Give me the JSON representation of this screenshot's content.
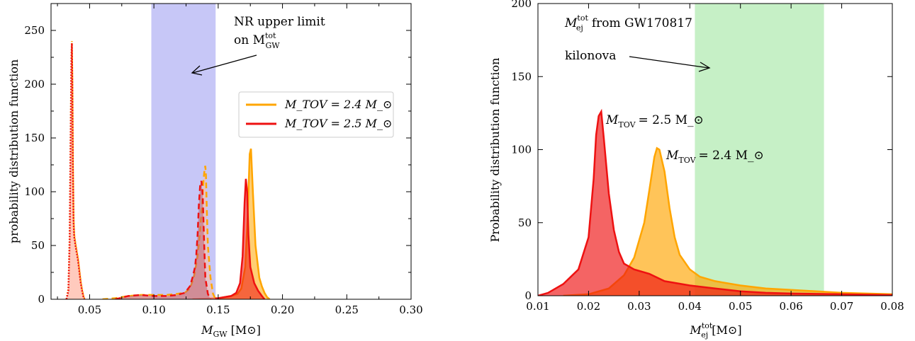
{
  "chart_data": [
    {
      "type": "area",
      "xlabel": "M_GW [M_⊙]",
      "ylabel": "probability distribution function",
      "xlim": [
        0.02,
        0.3
      ],
      "ylim": [
        0,
        275
      ],
      "x_ticks": [
        "0.05",
        "0.10",
        "0.15",
        "0.20",
        "0.25",
        "0.30"
      ],
      "y_ticks": [
        "0",
        "50",
        "100",
        "150",
        "200",
        "250"
      ],
      "shaded_band": {
        "x": [
          0.098,
          0.148
        ],
        "color": "#c7c7f7"
      },
      "annotation": {
        "line1": "NR upper limit",
        "line2_prefix": "on M",
        "line2_sub": "GW",
        "line2_sup": "tot"
      },
      "legend": {
        "placement": "right",
        "entries": [
          {
            "label": "M_TOV = 2.4 M_⊙",
            "color": "#ffa500"
          },
          {
            "label": "M_TOV = 2.5 M_⊙",
            "color": "#ee1111"
          }
        ]
      },
      "series": [
        {
          "name": "M_TOV = 2.4 M_⊙",
          "style": "solid",
          "color": "#ffa500",
          "fill": "#ffa500",
          "x": [
            0.13,
            0.15,
            0.16,
            0.165,
            0.168,
            0.171,
            0.173,
            0.1745,
            0.1755,
            0.177,
            0.179,
            0.182,
            0.184,
            0.186,
            0.188,
            0.19
          ],
          "y": [
            0,
            1,
            3,
            5,
            10,
            30,
            80,
            135,
            140,
            100,
            50,
            20,
            12,
            6,
            2,
            0
          ]
        },
        {
          "name": "M_TOV = 2.5 M_⊙",
          "style": "solid",
          "color": "#ee1111",
          "fill": "#ee1111",
          "x": [
            0.13,
            0.15,
            0.16,
            0.164,
            0.167,
            0.169,
            0.1705,
            0.1715,
            0.1725,
            0.1735,
            0.175,
            0.178,
            0.181,
            0.184,
            0.186
          ],
          "y": [
            0,
            1,
            3,
            6,
            15,
            40,
            90,
            112,
            100,
            60,
            30,
            15,
            8,
            3,
            0
          ]
        },
        {
          "name": "M_TOV = 2.4 M_⊙",
          "style": "dashed",
          "color": "#ffa500",
          "fill": "#ffc0a0",
          "x": [
            0.06,
            0.07,
            0.08,
            0.09,
            0.1,
            0.11,
            0.118,
            0.124,
            0.128,
            0.131,
            0.134,
            0.136,
            0.1375,
            0.1385,
            0.1395,
            0.14,
            0.1405,
            0.141,
            0.142,
            0.144,
            0.146,
            0.148
          ],
          "y": [
            0,
            1,
            3,
            4,
            4,
            4,
            5,
            6,
            10,
            20,
            40,
            65,
            90,
            110,
            122,
            124,
            115,
            90,
            50,
            20,
            5,
            0
          ]
        },
        {
          "name": "M_TOV = 2.5 M_⊙",
          "style": "dashed",
          "color": "#ee1111",
          "fill": "#c06070",
          "x": [
            0.07,
            0.08,
            0.09,
            0.1,
            0.11,
            0.118,
            0.124,
            0.128,
            0.13,
            0.132,
            0.133,
            0.134,
            0.135,
            0.136,
            0.137,
            0.138,
            0.139,
            0.14,
            0.142,
            0.144
          ],
          "y": [
            0,
            3,
            4,
            3,
            3,
            4,
            6,
            12,
            20,
            30,
            42,
            60,
            88,
            107,
            110,
            95,
            55,
            20,
            5,
            0
          ]
        },
        {
          "name": "M_TOV = 2.4 M_⊙",
          "style": "dotted",
          "color": "#ffa500",
          "fill": "#ffc8b8",
          "x": [
            0.032,
            0.0335,
            0.0345,
            0.0352,
            0.0358,
            0.0362,
            0.0366,
            0.037,
            0.0375,
            0.038,
            0.039,
            0.04,
            0.041,
            0.042,
            0.043,
            0.044,
            0.045,
            0.046
          ],
          "y": [
            0,
            10,
            60,
            150,
            225,
            240,
            205,
            130,
            75,
            60,
            52,
            45,
            38,
            28,
            18,
            10,
            4,
            0
          ]
        },
        {
          "name": "M_TOV = 2.5 M_⊙",
          "style": "dotted",
          "color": "#ee1111",
          "fill": "#ffb8a8",
          "x": [
            0.032,
            0.0335,
            0.0345,
            0.0352,
            0.0358,
            0.0362,
            0.0366,
            0.037,
            0.0375,
            0.038,
            0.039,
            0.04,
            0.041,
            0.042,
            0.043,
            0.044,
            0.045,
            0.046
          ],
          "y": [
            0,
            8,
            55,
            145,
            220,
            238,
            200,
            125,
            72,
            58,
            50,
            43,
            36,
            26,
            16,
            9,
            3,
            0
          ]
        }
      ]
    },
    {
      "type": "area",
      "xlabel": "M_ej^tot [M_⊙]",
      "ylabel": "Probability distribution function",
      "xlim": [
        0.01,
        0.08
      ],
      "ylim": [
        0,
        200
      ],
      "x_ticks": [
        "0.01",
        "0.02",
        "0.03",
        "0.04",
        "0.05",
        "0.06",
        "0.07",
        "0.08"
      ],
      "y_ticks": [
        "0",
        "50",
        "100",
        "150",
        "200"
      ],
      "shaded_band": {
        "x": [
          0.041,
          0.0665
        ],
        "color": "#c6f0c6"
      },
      "annotation": {
        "line1_prefix": "M",
        "line1_sub": "ej",
        "line1_sup": "tot",
        "line1_suffix": "from GW170817",
        "line2": "kilonova"
      },
      "labels": [
        {
          "text_prefix": "M",
          "text_sub": "TOV",
          "text_suffix": "= 2.5 M_⊙"
        },
        {
          "text_prefix": "M",
          "text_sub": "TOV",
          "text_suffix": "= 2.4 M_⊙"
        }
      ],
      "series": [
        {
          "name": "M_TOV = 2.4 M_⊙",
          "color": "#ffa500",
          "fill": "#ffa500",
          "x": [
            0.015,
            0.02,
            0.024,
            0.027,
            0.029,
            0.031,
            0.032,
            0.033,
            0.0335,
            0.034,
            0.035,
            0.036,
            0.037,
            0.038,
            0.04,
            0.042,
            0.045,
            0.05,
            0.055,
            0.06,
            0.065,
            0.07,
            0.075,
            0.08
          ],
          "y": [
            0,
            1,
            5,
            14,
            26,
            50,
            72,
            95,
            101,
            100,
            85,
            60,
            40,
            28,
            18,
            13,
            10,
            7,
            5,
            4,
            3,
            2,
            1.5,
            1
          ]
        },
        {
          "name": "M_TOV = 2.5 M_⊙",
          "color": "#ee1111",
          "fill": "#ee1111",
          "x": [
            0.01,
            0.012,
            0.015,
            0.018,
            0.02,
            0.021,
            0.0215,
            0.022,
            0.0225,
            0.023,
            0.024,
            0.025,
            0.026,
            0.027,
            0.029,
            0.032,
            0.035,
            0.04,
            0.045,
            0.05,
            0.055,
            0.06,
            0.07,
            0.08
          ],
          "y": [
            0,
            2,
            8,
            18,
            40,
            80,
            110,
            123,
            126,
            108,
            70,
            45,
            30,
            22,
            18,
            15,
            10,
            7,
            5,
            3,
            2,
            1.5,
            1,
            0.5
          ]
        }
      ]
    }
  ]
}
